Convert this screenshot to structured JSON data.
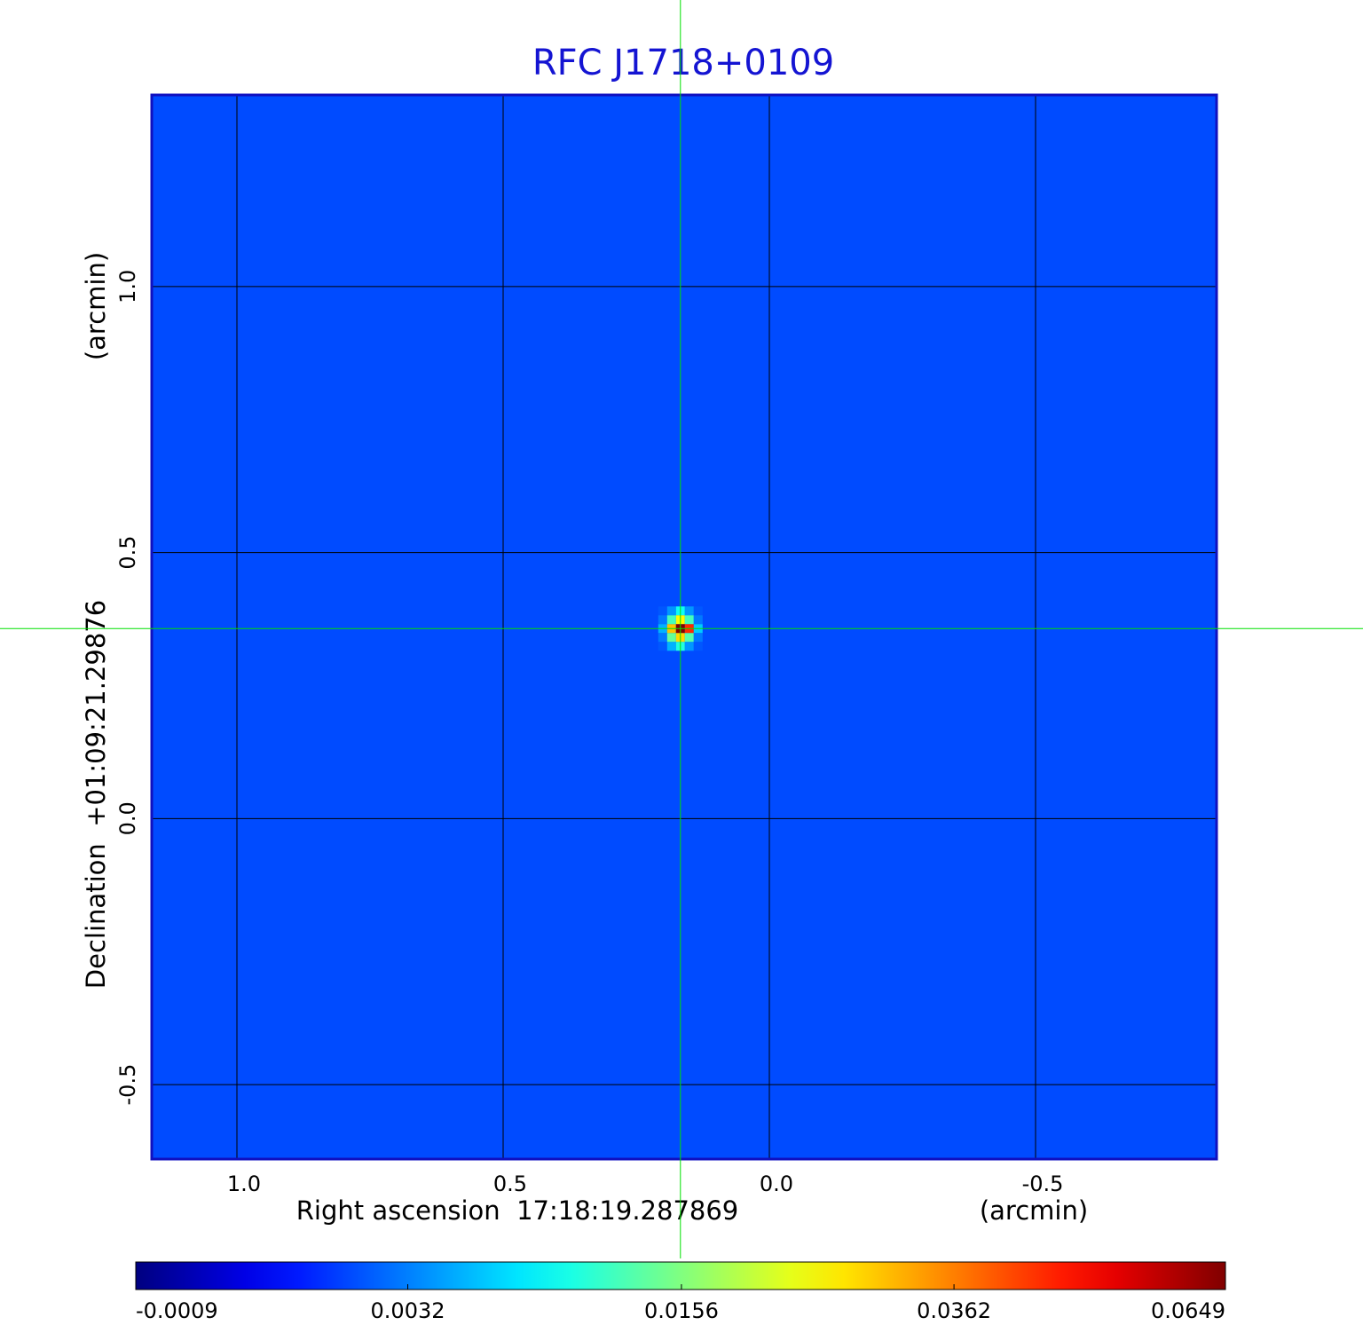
{
  "chart_data": {
    "type": "heatmap",
    "title": "RFC J1718+0109",
    "x_label": "Right ascension  17:18:19.287869",
    "x_unit": "(arcmin)",
    "y_label": "Declination  +01:09:21.29876",
    "y_unit": "(arcmin)",
    "xlim": [
      1.16,
      -0.84
    ],
    "xticks": [
      {
        "value": 1,
        "label": "1.0"
      },
      {
        "value": 0.5,
        "label": "0.5"
      },
      {
        "value": 0,
        "label": "0.0"
      },
      -0.5
    ],
    "ylim": [
      -0.64,
      1.36
    ],
    "yticks": [
      {
        "value": 1,
        "label": "1.0"
      },
      {
        "value": 0.5,
        "label": "0.5"
      },
      {
        "value": 0,
        "label": "0.0"
      },
      -0.5
    ],
    "grid": true,
    "colormap": "jet",
    "background": 0.0017,
    "source": {
      "x": 0.167,
      "y": 0.357,
      "values": [
        [
          0.002,
          0.004,
          0.009,
          0.004,
          0.002
        ],
        [
          0.003,
          0.012,
          0.025,
          0.012,
          0.003
        ],
        [
          0.005,
          0.03,
          0.0649,
          0.045,
          0.006
        ],
        [
          0.003,
          0.014,
          0.028,
          0.013,
          0.003
        ],
        [
          0.002,
          0.005,
          0.01,
          0.004,
          0.002
        ]
      ]
    },
    "colorbar": {
      "scale": "sqrt",
      "lim": [
        -0.0009,
        0.0649
      ],
      "ticks": [
        -0.0009,
        0.0032,
        0.0156,
        0.0362,
        0.0649
      ]
    },
    "crosshair": {
      "x": 0.167,
      "y": 0.357,
      "color": "#00e000"
    }
  }
}
